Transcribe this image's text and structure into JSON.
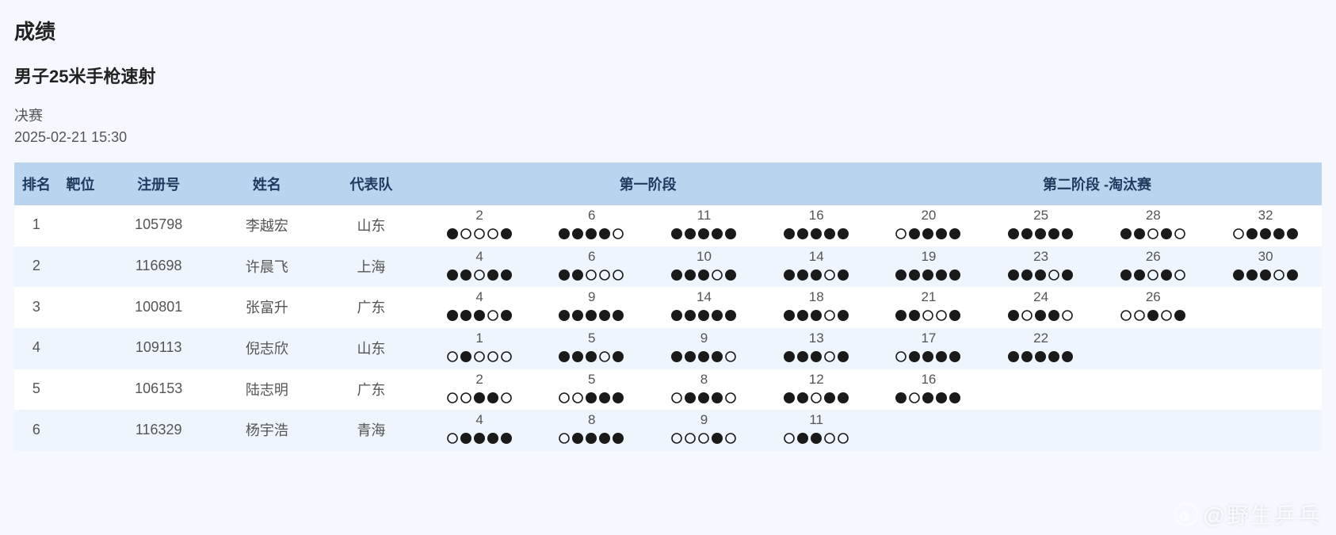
{
  "title": "成绩",
  "subtitle": "男子25米手枪速射",
  "round": "决赛",
  "datetime": "2025-02-21 15:30",
  "watermark": "@野生乒乓",
  "columns": {
    "rank": "排名",
    "target": "靶位",
    "reg": "注册号",
    "name": "姓名",
    "team": "代表队",
    "stage1": "第一阶段",
    "stage2": "第二阶段 -淘汰赛"
  },
  "styling": {
    "background_color": "#f5f9ff",
    "header_bg": "#b8d4ef",
    "header_text": "#1f3a5f",
    "row_alt_bg": "#eef5fc",
    "row_bg": "#ffffff",
    "text_color": "#555555",
    "dot": {
      "filled_color": "#1a1a1a",
      "empty_stroke": "#1a1a1a",
      "radius": 7,
      "spacing": 3
    },
    "font_sizes": {
      "title": 26,
      "subtitle": 22,
      "meta": 18,
      "th": 18,
      "td": 18,
      "score": 17
    }
  },
  "stage1_series_count": 4,
  "stage2_series_count": 4,
  "rows": [
    {
      "rank": "1",
      "target": "",
      "reg": "105798",
      "name": "李越宏",
      "team": "山东",
      "series": [
        {
          "score": "2",
          "dots": [
            1,
            0,
            0,
            0,
            1
          ]
        },
        {
          "score": "6",
          "dots": [
            1,
            1,
            1,
            1,
            0
          ]
        },
        {
          "score": "11",
          "dots": [
            1,
            1,
            1,
            1,
            1
          ]
        },
        {
          "score": "16",
          "dots": [
            1,
            1,
            1,
            1,
            1
          ]
        },
        {
          "score": "20",
          "dots": [
            0,
            1,
            1,
            1,
            1
          ]
        },
        {
          "score": "25",
          "dots": [
            1,
            1,
            1,
            1,
            1
          ]
        },
        {
          "score": "28",
          "dots": [
            1,
            1,
            0,
            1,
            0
          ]
        },
        {
          "score": "32",
          "dots": [
            0,
            1,
            1,
            1,
            1
          ]
        }
      ]
    },
    {
      "rank": "2",
      "target": "",
      "reg": "116698",
      "name": "许晨飞",
      "team": "上海",
      "series": [
        {
          "score": "4",
          "dots": [
            1,
            1,
            0,
            1,
            1
          ]
        },
        {
          "score": "6",
          "dots": [
            1,
            1,
            0,
            0,
            0
          ]
        },
        {
          "score": "10",
          "dots": [
            1,
            1,
            1,
            0,
            1
          ]
        },
        {
          "score": "14",
          "dots": [
            1,
            1,
            1,
            0,
            1
          ]
        },
        {
          "score": "19",
          "dots": [
            1,
            1,
            1,
            1,
            1
          ]
        },
        {
          "score": "23",
          "dots": [
            1,
            1,
            1,
            0,
            1
          ]
        },
        {
          "score": "26",
          "dots": [
            1,
            1,
            0,
            1,
            0
          ]
        },
        {
          "score": "30",
          "dots": [
            1,
            1,
            1,
            0,
            1
          ]
        }
      ]
    },
    {
      "rank": "3",
      "target": "",
      "reg": "100801",
      "name": "张富升",
      "team": "广东",
      "series": [
        {
          "score": "4",
          "dots": [
            1,
            1,
            1,
            0,
            1
          ]
        },
        {
          "score": "9",
          "dots": [
            1,
            1,
            1,
            1,
            1
          ]
        },
        {
          "score": "14",
          "dots": [
            1,
            1,
            1,
            1,
            1
          ]
        },
        {
          "score": "18",
          "dots": [
            1,
            1,
            1,
            0,
            1
          ]
        },
        {
          "score": "21",
          "dots": [
            1,
            1,
            0,
            0,
            1
          ]
        },
        {
          "score": "24",
          "dots": [
            1,
            0,
            1,
            1,
            0
          ]
        },
        {
          "score": "26",
          "dots": [
            0,
            0,
            1,
            0,
            1
          ]
        }
      ]
    },
    {
      "rank": "4",
      "target": "",
      "reg": "109113",
      "name": "倪志欣",
      "team": "山东",
      "series": [
        {
          "score": "1",
          "dots": [
            0,
            1,
            0,
            0,
            0
          ]
        },
        {
          "score": "5",
          "dots": [
            1,
            1,
            1,
            0,
            1
          ]
        },
        {
          "score": "9",
          "dots": [
            1,
            1,
            1,
            1,
            0
          ]
        },
        {
          "score": "13",
          "dots": [
            1,
            1,
            1,
            0,
            1
          ]
        },
        {
          "score": "17",
          "dots": [
            0,
            1,
            1,
            1,
            1
          ]
        },
        {
          "score": "22",
          "dots": [
            1,
            1,
            1,
            1,
            1
          ]
        }
      ]
    },
    {
      "rank": "5",
      "target": "",
      "reg": "106153",
      "name": "陆志明",
      "team": "广东",
      "series": [
        {
          "score": "2",
          "dots": [
            0,
            0,
            1,
            1,
            0
          ]
        },
        {
          "score": "5",
          "dots": [
            0,
            0,
            1,
            1,
            1
          ]
        },
        {
          "score": "8",
          "dots": [
            0,
            1,
            1,
            1,
            0
          ]
        },
        {
          "score": "12",
          "dots": [
            1,
            1,
            0,
            1,
            1
          ]
        },
        {
          "score": "16",
          "dots": [
            1,
            0,
            1,
            1,
            1
          ]
        }
      ]
    },
    {
      "rank": "6",
      "target": "",
      "reg": "116329",
      "name": "杨宇浩",
      "team": "青海",
      "series": [
        {
          "score": "4",
          "dots": [
            0,
            1,
            1,
            1,
            1
          ]
        },
        {
          "score": "8",
          "dots": [
            0,
            1,
            1,
            1,
            1
          ]
        },
        {
          "score": "9",
          "dots": [
            0,
            0,
            0,
            1,
            0
          ]
        },
        {
          "score": "11",
          "dots": [
            0,
            1,
            1,
            0,
            0
          ]
        }
      ]
    }
  ]
}
